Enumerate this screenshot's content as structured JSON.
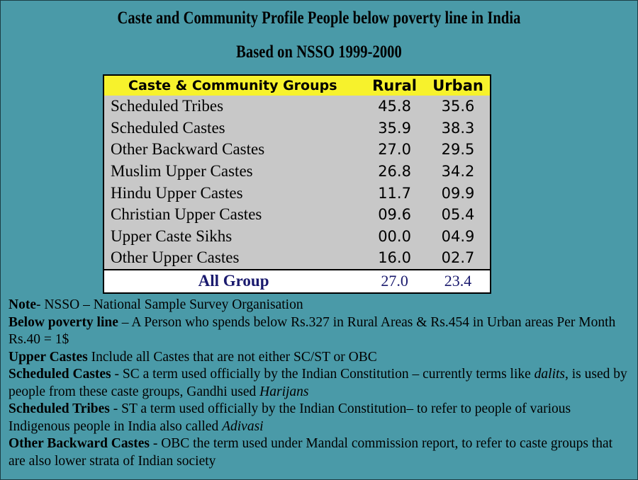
{
  "title": "Caste and Community Profile People below poverty line in India",
  "subtitle": "Based on NSSO 1999-2000",
  "table": {
    "headers": [
      "Caste & Community Groups",
      "Rural",
      "Urban"
    ],
    "rows": [
      {
        "group": "Scheduled Tribes",
        "rural": "45.8",
        "urban": "35.6"
      },
      {
        "group": "Scheduled Castes",
        "rural": "35.9",
        "urban": "38.3"
      },
      {
        "group": "Other Backward Castes",
        "rural": "27.0",
        "urban": "29.5"
      },
      {
        "group": "Muslim Upper Castes",
        "rural": "26.8",
        "urban": "34.2"
      },
      {
        "group": "Hindu Upper Castes",
        "rural": "11.7",
        "urban": "09.9"
      },
      {
        "group": "Christian Upper Castes",
        "rural": "09.6",
        "urban": "05.4"
      },
      {
        "group": "Upper Caste Sikhs",
        "rural": "00.0",
        "urban": "04.9"
      },
      {
        "group": "Other Upper Castes",
        "rural": "16.0",
        "urban": "02.7"
      }
    ],
    "total": {
      "group": "All Group",
      "rural": "27.0",
      "urban": "23.4"
    }
  },
  "notes": {
    "note_label": "Note",
    "note_text": "- NSSO – National Sample Survey Organisation",
    "bpl_label": "Below poverty line",
    "bpl_text": " – A Person who spends below Rs.327 in Rural Areas & Rs.454 in Urban areas Per Month Rs.40 = 1$",
    "uc_label": "Upper Castes",
    "uc_text": " Include all Castes that are not either SC/ST or OBC",
    "sc_label": "Scheduled Castes",
    "sc_text_1": " - SC a term used officially by the Indian Constitution – currently terms like ",
    "sc_italic_1": "dalits",
    "sc_text_2": ", is used by people from these caste groups, Gandhi used ",
    "sc_italic_2": "Harijans",
    "st_label": "Scheduled Tribes",
    "st_text": " - ST a term used officially by the Indian Constitution– to refer to people of various Indigenous people in India also called ",
    "st_italic": "Adivasi",
    "obc_label": "Other Backward Castes",
    "obc_text": " - OBC the term used under Mandal commission report, to refer to caste groups that are also lower strata of Indian society"
  },
  "colors": {
    "background": "#4a9aa8",
    "header_fill": "#f7f22c",
    "table_fill": "#c8c8c8",
    "total_fill": "#ffffff",
    "total_text": "#1a1a6e"
  }
}
